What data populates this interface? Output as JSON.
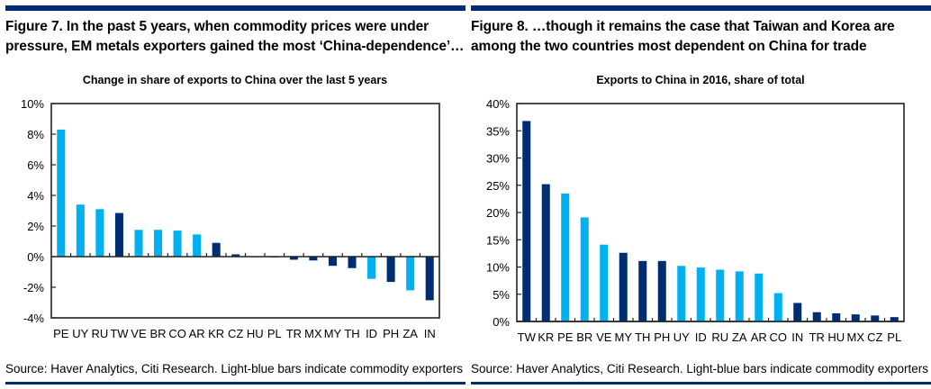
{
  "colors": {
    "commodity_exporter": "#00b0f0",
    "other": "#002d72",
    "rule": "#002d72"
  },
  "figures": [
    {
      "title": "Figure 7. In the past 5 years, when commodity prices were under pressure, EM metals exporters gained the most ‘China-dependence’…",
      "source": "Source: Haver Analytics, Citi Research. Light-blue bars indicate commodity exporters"
    },
    {
      "title": "Figure 8.  …though it remains the case that Taiwan and Korea are among the two countries most dependent on China for trade",
      "source": "Source: Haver Analytics, Citi Research. Light-blue bars indicate commodity exporters"
    }
  ],
  "chart_data": [
    {
      "type": "bar",
      "title": "Change in share of exports to China over the last 5 years",
      "xlabel": "",
      "ylabel": "",
      "ylim": [
        -4,
        10
      ],
      "yticks": [
        -4,
        -2,
        0,
        2,
        4,
        6,
        8,
        10
      ],
      "ytick_labels": [
        "-4%",
        "-2%",
        "0%",
        "2%",
        "4%",
        "6%",
        "8%",
        "10%"
      ],
      "categories": [
        "PE",
        "UY",
        "RU",
        "TW",
        "VE",
        "BR",
        "CO",
        "AR",
        "KR",
        "CZ",
        "HU",
        "PL",
        "TR",
        "MX",
        "MY",
        "TH",
        "ID",
        "PH",
        "ZA",
        "IN"
      ],
      "values": [
        8.3,
        3.4,
        3.1,
        2.85,
        1.75,
        1.75,
        1.7,
        1.45,
        0.9,
        0.15,
        0.0,
        -0.05,
        -0.2,
        -0.25,
        -0.6,
        -0.75,
        -1.45,
        -1.65,
        -2.2,
        -2.85
      ],
      "commodity_exporter": [
        true,
        true,
        true,
        false,
        true,
        true,
        true,
        true,
        false,
        false,
        false,
        false,
        false,
        false,
        false,
        false,
        true,
        false,
        true,
        false
      ],
      "legend": "none",
      "grid": false
    },
    {
      "type": "bar",
      "title": "Exports to China in 2016, share of total",
      "xlabel": "",
      "ylabel": "",
      "ylim": [
        0,
        40
      ],
      "yticks": [
        0,
        5,
        10,
        15,
        20,
        25,
        30,
        35,
        40
      ],
      "ytick_labels": [
        "0%",
        "5%",
        "10%",
        "15%",
        "20%",
        "25%",
        "30%",
        "35%",
        "40%"
      ],
      "categories": [
        "TW",
        "KR",
        "PE",
        "BR",
        "VE",
        "MY",
        "TH",
        "PH",
        "UY",
        "ID",
        "RU",
        "ZA",
        "AR",
        "CO",
        "IN",
        "TR",
        "HU",
        "MX",
        "CZ",
        "PL"
      ],
      "values": [
        36.8,
        25.2,
        23.5,
        19.1,
        14.1,
        12.6,
        11.1,
        11.1,
        10.2,
        9.9,
        9.5,
        9.2,
        8.8,
        5.2,
        3.4,
        1.7,
        1.5,
        1.3,
        1.1,
        0.8
      ],
      "commodity_exporter": [
        false,
        false,
        true,
        true,
        true,
        false,
        false,
        false,
        true,
        true,
        true,
        true,
        true,
        true,
        false,
        false,
        false,
        false,
        false,
        false
      ],
      "legend": "none",
      "grid": false
    }
  ]
}
